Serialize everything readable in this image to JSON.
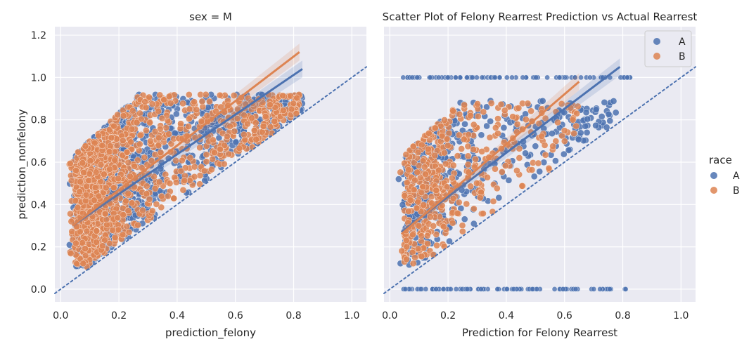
{
  "colors": {
    "background": "#eaeaf2",
    "grid": "#ffffff",
    "A": "#4c72b0",
    "B": "#dd8452"
  },
  "chart_data": [
    {
      "type": "scatter",
      "title": "sex = M",
      "xlabel": "prediction_felony",
      "ylabel": "prediction_nonfelony",
      "xlim": [
        -0.02,
        1.05
      ],
      "ylim": [
        -0.06,
        1.24
      ],
      "xticks": [
        "0.0",
        "0.2",
        "0.4",
        "0.6",
        "0.8",
        "1.0"
      ],
      "yticks": [
        "0.0",
        "0.2",
        "0.4",
        "0.6",
        "0.8",
        "1.0",
        "1.2"
      ],
      "grid": true,
      "reference_line": {
        "style": "dotted",
        "slope": 1,
        "intercept": 0
      },
      "series": [
        {
          "name": "A",
          "color": "#4c72b0",
          "regression": {
            "x": [
              0.04,
              0.83
            ],
            "y": [
              0.3,
              1.04
            ]
          },
          "point_cloud": {
            "count": 1400,
            "x_range": [
              0.03,
              0.83
            ],
            "y_range": [
              0.1,
              0.92
            ]
          }
        },
        {
          "name": "B",
          "color": "#dd8452",
          "regression": {
            "x": [
              0.04,
              0.82
            ],
            "y": [
              0.3,
              1.12
            ]
          },
          "point_cloud": {
            "count": 1300,
            "x_range": [
              0.03,
              0.82
            ],
            "y_range": [
              0.1,
              0.92
            ]
          }
        }
      ]
    },
    {
      "type": "scatter",
      "title": "Scatter Plot of Felony Rearrest Prediction vs Actual Rearrest",
      "xlabel": "Prediction for Felony Rearrest",
      "ylabel": "",
      "xlim": [
        -0.02,
        1.05
      ],
      "ylim": [
        -0.06,
        1.24
      ],
      "xticks": [
        "0.0",
        "0.2",
        "0.4",
        "0.6",
        "0.8",
        "1.0"
      ],
      "yticks": [],
      "grid": true,
      "reference_line": {
        "style": "dotted",
        "slope": 1,
        "intercept": 0
      },
      "legend": {
        "placement": "top-right",
        "entries": [
          "A",
          "B"
        ]
      },
      "series": [
        {
          "name": "A",
          "color": "#4c72b0",
          "regression": {
            "x": [
              0.04,
              0.79
            ],
            "y": [
              0.27,
              1.05
            ]
          },
          "bands": [
            {
              "y": 1.0,
              "x_range": [
                0.04,
                0.83
              ]
            },
            {
              "y": 0.0,
              "x_range": [
                0.04,
                0.82
              ]
            }
          ],
          "point_cloud": {
            "count": 500,
            "x_range": [
              0.03,
              0.79
            ],
            "y_range": [
              0.1,
              0.89
            ]
          }
        },
        {
          "name": "B",
          "color": "#dd8452",
          "regression": {
            "x": [
              0.04,
              0.65
            ],
            "y": [
              0.26,
              0.98
            ]
          },
          "point_cloud": {
            "count": 450,
            "x_range": [
              0.03,
              0.65
            ],
            "y_range": [
              0.1,
              0.88
            ]
          }
        }
      ]
    }
  ],
  "figure_legend": {
    "title": "race",
    "entries": [
      "A",
      "B"
    ]
  }
}
